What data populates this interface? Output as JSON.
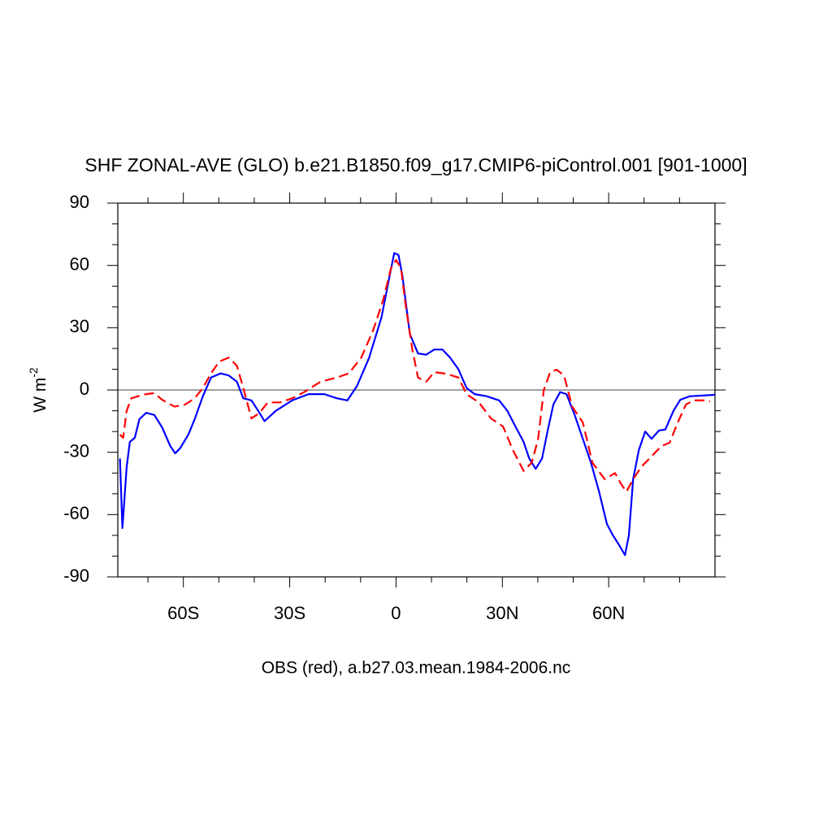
{
  "chart_data": {
    "type": "line",
    "title": "SHF ZONAL-AVE (GLO) b.e21.B1850.f09_g17.CMIP6-piControl.001 [901-1000]",
    "ylabel": "W m",
    "ylabel_sup": "-2",
    "xlabel": "OBS (red), a.b27.03.mean.1984-2006.nc",
    "xlim": [
      -78.5,
      90
    ],
    "ylim": [
      -90,
      90
    ],
    "xticks": [
      {
        "value": -60,
        "label": "60S"
      },
      {
        "value": -30,
        "label": "30S"
      },
      0,
      {
        "value": 30,
        "label": "30N"
      },
      {
        "value": 60,
        "label": "60N"
      }
    ],
    "xminorticks": [
      -70,
      -50,
      -40,
      -20,
      -10,
      10,
      20,
      40,
      50,
      70,
      80
    ],
    "yticks": [
      -90,
      -60,
      -30,
      0,
      30,
      60,
      90
    ],
    "yminorticks": [
      -80,
      -70,
      -50,
      -40,
      -20,
      -10,
      10,
      20,
      40,
      50,
      70,
      80
    ],
    "hline": 0,
    "series": [
      {
        "color": "#0000ff",
        "dash": "solid",
        "x": [
          -77.9,
          -77.2,
          -76,
          -75.1,
          -73.7,
          -72.4,
          -70.5,
          -68.2,
          -66,
          -63.7,
          -62.3,
          -60.9,
          -58.6,
          -56.8,
          -54.5,
          -52.2,
          -49.5,
          -47.2,
          -44.9,
          -43.1,
          -40.8,
          -38.9,
          -37.1,
          -33.9,
          -29.3,
          -24.7,
          -20.2,
          -16.7,
          -13.7,
          -11,
          -7.6,
          -4.1,
          -1.8,
          -0.5,
          0.7,
          1.8,
          3.9,
          6.2,
          8.5,
          10.8,
          13.1,
          15.3,
          17.6,
          19.9,
          22.2,
          25.6,
          29.1,
          31.4,
          33.7,
          36,
          37.6,
          39.4,
          41.2,
          42.8,
          44.4,
          46.3,
          48.1,
          50.4,
          52.7,
          55,
          57.3,
          59.5,
          61.1,
          62.7,
          64.6,
          65.7,
          66.9,
          68.5,
          70.3,
          72.1,
          74.2,
          76,
          78.3,
          80.2,
          82.9,
          86.4,
          90
        ],
        "values": [
          -33,
          -66.5,
          -37,
          -25,
          -23,
          -14,
          -11,
          -12,
          -18,
          -27,
          -30.5,
          -28,
          -21.5,
          -14,
          -3,
          6,
          8,
          7,
          4,
          -4,
          -5,
          -10,
          -15,
          -10,
          -5,
          -2,
          -2,
          -4,
          -5,
          2,
          15.5,
          35,
          55,
          66,
          65,
          55,
          27,
          17.6,
          17,
          19.5,
          19.5,
          15.5,
          10,
          1,
          -2,
          -3,
          -5,
          -10,
          -17.6,
          -25,
          -33,
          -38,
          -33,
          -19.5,
          -7,
          -1,
          -2,
          -12,
          -23.5,
          -35,
          -49,
          -64.5,
          -69.7,
          -74,
          -79.5,
          -70,
          -43,
          -29,
          -20,
          -23.5,
          -19.5,
          -19,
          -10,
          -4.7,
          -3,
          -2.7,
          -2.3
        ]
      },
      {
        "color": "#ff0000",
        "dash": "dashed",
        "x": [
          -77.9,
          -77,
          -76,
          -74.7,
          -72.8,
          -70.5,
          -68.2,
          -66,
          -62.5,
          -59.5,
          -56.8,
          -54.5,
          -52.2,
          -49.9,
          -47.2,
          -44.9,
          -43.1,
          -40.8,
          -38.5,
          -36.2,
          -32.7,
          -29.3,
          -25.9,
          -21.3,
          -16.7,
          -13.3,
          -9.8,
          -6.4,
          -3.7,
          -1.4,
          0,
          1.4,
          2.7,
          4.6,
          6.2,
          8.5,
          10.8,
          14.2,
          17.6,
          19.9,
          23.4,
          26.8,
          30.2,
          33,
          36,
          38.3,
          40.1,
          41.7,
          43.5,
          45.3,
          47.4,
          49.7,
          52.7,
          55.4,
          58.9,
          61.8,
          63.4,
          65,
          66.9,
          69.2,
          71.5,
          74.9,
          77.2,
          79.5,
          81.8,
          84,
          87.5,
          88.6
        ],
        "values": [
          -21.5,
          -23,
          -10,
          -4,
          -3,
          -2,
          -1.5,
          -4.7,
          -8,
          -7,
          -4,
          1,
          8,
          13.7,
          15.6,
          11.7,
          1,
          -13.7,
          -11,
          -6,
          -6,
          -4,
          -1,
          4,
          6,
          8,
          15.6,
          29,
          43,
          58.7,
          62.6,
          58.7,
          41,
          19.5,
          6,
          4,
          8.6,
          7.8,
          6,
          -2,
          -6,
          -13.7,
          -17.6,
          -29,
          -39,
          -35,
          -23.5,
          0,
          8.6,
          9.8,
          7,
          -8,
          -15.6,
          -35,
          -43,
          -40,
          -45,
          -49,
          -43,
          -37,
          -33,
          -27,
          -25.4,
          -15.6,
          -7,
          -5,
          -5,
          -5.5
        ]
      }
    ]
  }
}
